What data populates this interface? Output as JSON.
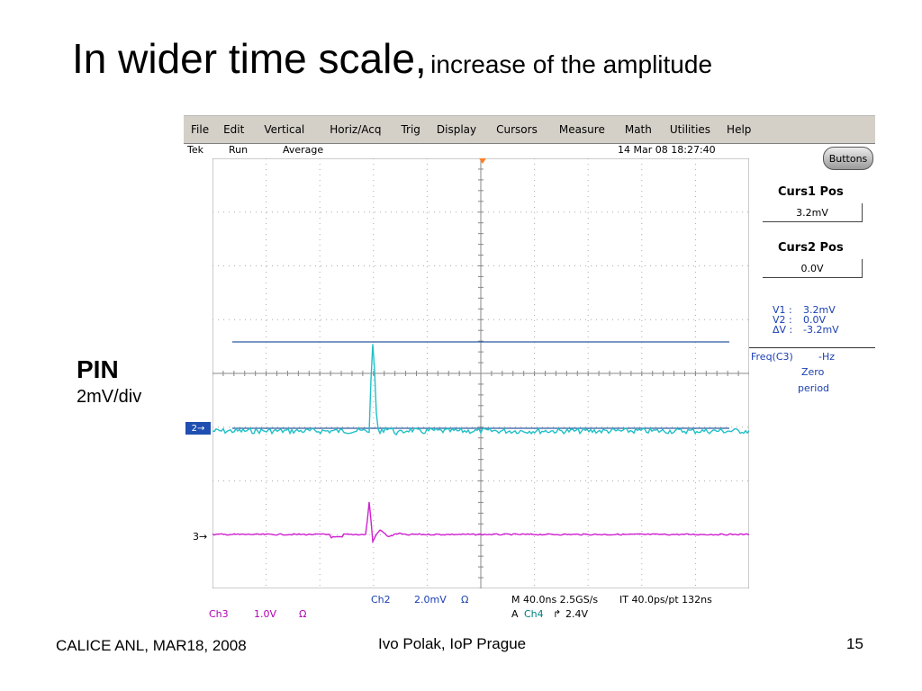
{
  "slide": {
    "title_main": "In wider time scale,",
    "title_sub": "increase of the amplitude",
    "pin_label": "PIN",
    "pin_scale": "2mV/div",
    "footer_left": "CALICE ANL, MAR18, 2008",
    "footer_center": "Ivo Polak, IoP Prague",
    "footer_right": "15"
  },
  "menubar": [
    "File",
    "Edit",
    "Vertical",
    "Horiz/Acq",
    "Trig",
    "Display",
    "Cursors",
    "Measure",
    "Math",
    "Utilities",
    "Help"
  ],
  "status": {
    "brand": "Tek",
    "state": "Run",
    "mode": "Average",
    "datetime": "14 Mar 08 18:27:40"
  },
  "buttons_label": "Buttons",
  "cursors": {
    "curs1_title": "Curs1 Pos",
    "curs1_value": "3.2mV",
    "curs2_title": "Curs2 Pos",
    "curs2_value": "0.0V",
    "v1_label": "V1 :",
    "v1_value": "3.2mV",
    "v2_label": "V2 :",
    "v2_value": "0.0V",
    "dv_label": "ΔV :",
    "dv_value": "-3.2mV",
    "freq_label": "Freq(C3)",
    "freq_value": "-Hz",
    "freq_note1": "Zero",
    "freq_note2": "period"
  },
  "markers": {
    "ch2": "2",
    "ch3": "3"
  },
  "bottom": {
    "ch2_name": "Ch2",
    "ch2_scale": "2.0mV",
    "ch2_coupling": "Ω",
    "ch3_name": "Ch3",
    "ch3_scale": "1.0V",
    "ch3_coupling": "Ω",
    "horiz": "M 40.0ns 2.5GS/s",
    "trig_info": "IT 40.0ps/pt 132ns",
    "trig_prefix": "A",
    "trig_source": "Ch4",
    "trig_slope": "⿺",
    "trig_level": "2.4V"
  },
  "colors": {
    "ch2_trace": "#20c0c8",
    "ch3_trace": "#d020d0",
    "cursor": "#2a5aa0",
    "menubar_bg": "#d4d0c8"
  }
}
